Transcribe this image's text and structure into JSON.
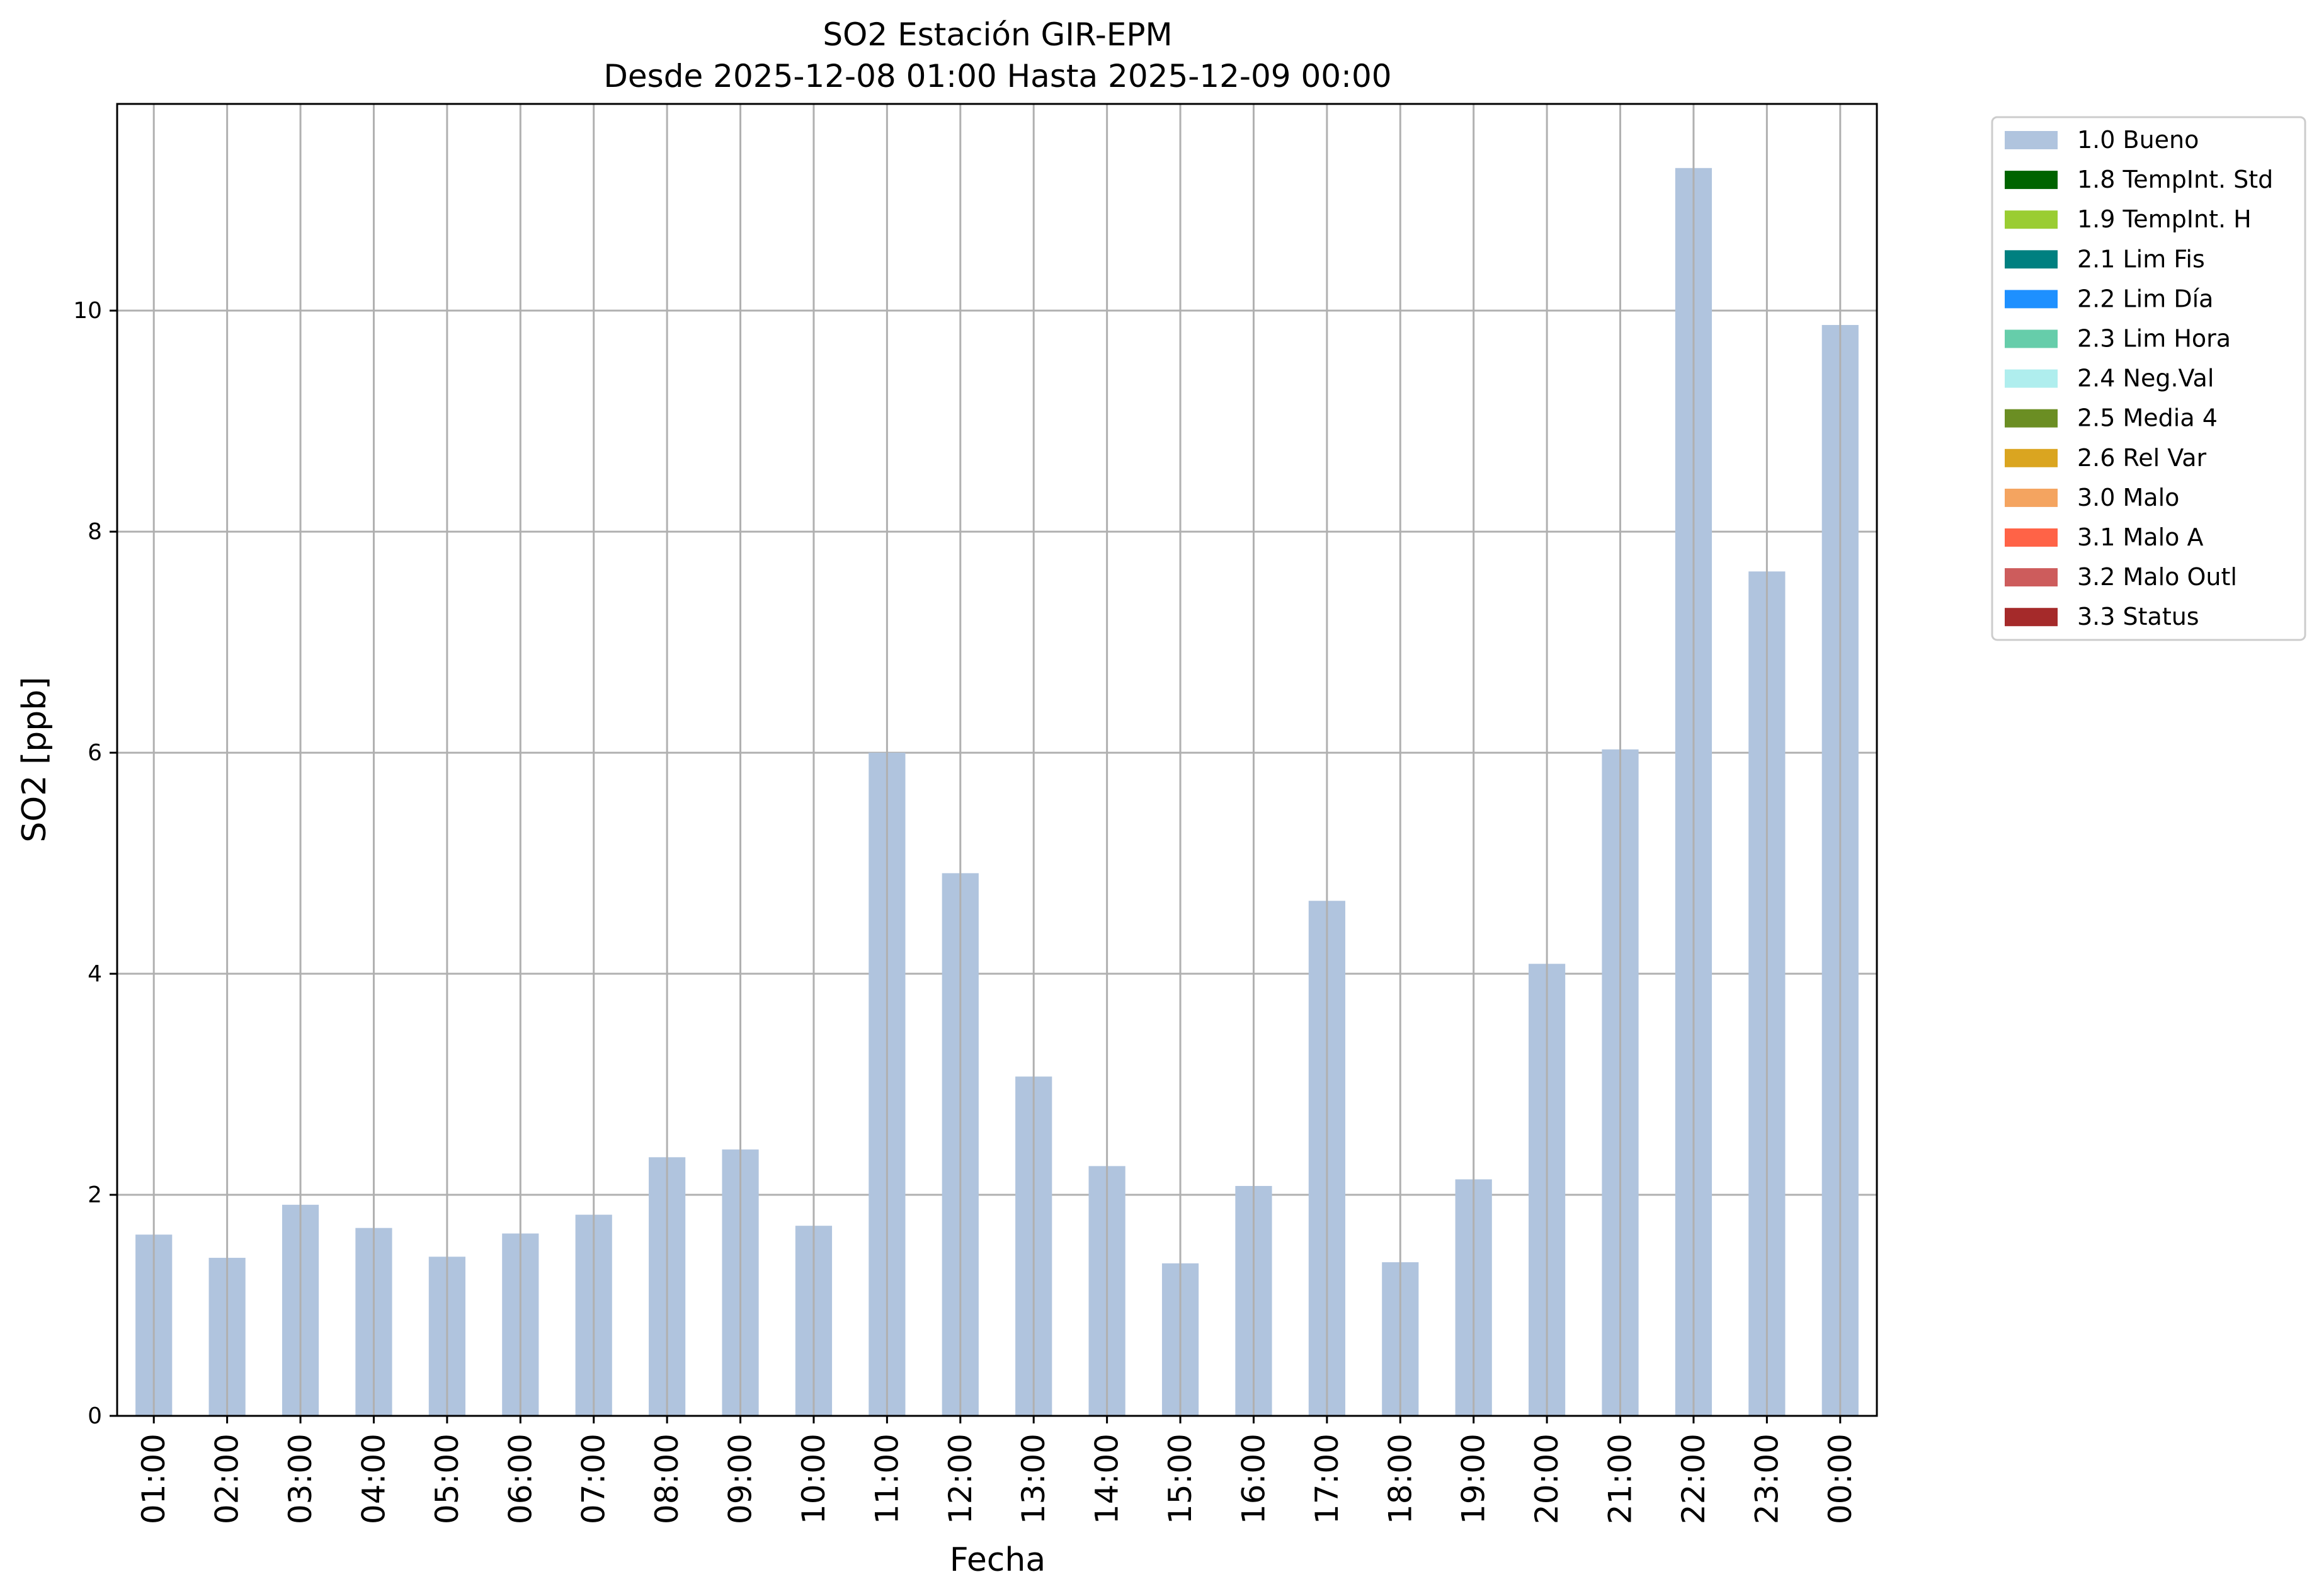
{
  "chart_data": {
    "type": "bar",
    "title": "SO2 Estación GIR-EPM",
    "subtitle": "Desde 2025-12-08 01:00 Hasta 2025-12-09 00:00",
    "xlabel": "Fecha",
    "ylabel": "SO2 [ppb]",
    "ylim": [
      0,
      11.87
    ],
    "yticks": [
      0,
      2,
      4,
      6,
      8,
      10
    ],
    "grid": true,
    "legend_position": "outside-right",
    "categories": [
      "01:00",
      "02:00",
      "03:00",
      "04:00",
      "05:00",
      "06:00",
      "07:00",
      "08:00",
      "09:00",
      "10:00",
      "11:00",
      "12:00",
      "13:00",
      "14:00",
      "15:00",
      "16:00",
      "17:00",
      "18:00",
      "19:00",
      "20:00",
      "21:00",
      "22:00",
      "23:00",
      "00:00"
    ],
    "series": [
      {
        "name": "1.0 Bueno",
        "color": "#b0c4de",
        "values": [
          1.64,
          1.43,
          1.91,
          1.7,
          1.44,
          1.65,
          1.82,
          2.34,
          2.41,
          1.72,
          6.0,
          4.91,
          3.07,
          2.26,
          1.38,
          2.08,
          4.66,
          1.39,
          2.14,
          4.09,
          6.03,
          11.29,
          7.64,
          9.87
        ]
      }
    ],
    "legend": [
      {
        "label": "1.0 Bueno",
        "color": "#b0c4de"
      },
      {
        "label": "1.8 TempInt. Std",
        "color": "#006400"
      },
      {
        "label": "1.9 TempInt. H",
        "color": "#9acd32"
      },
      {
        "label": "2.1 Lim Fis",
        "color": "#008080"
      },
      {
        "label": "2.2 Lim Día",
        "color": "#1e90ff"
      },
      {
        "label": "2.3 Lim Hora",
        "color": "#66cdaa"
      },
      {
        "label": "2.4 Neg.Val",
        "color": "#afeeee"
      },
      {
        "label": "2.5 Media 4",
        "color": "#6b8e23"
      },
      {
        "label": "2.6 Rel Var",
        "color": "#daa520"
      },
      {
        "label": "3.0 Malo",
        "color": "#f4a460"
      },
      {
        "label": "3.1 Malo A",
        "color": "#ff6347"
      },
      {
        "label": "3.2 Malo Outl",
        "color": "#cd5c5c"
      },
      {
        "label": "3.3 Status",
        "color": "#a52a2a"
      }
    ]
  }
}
